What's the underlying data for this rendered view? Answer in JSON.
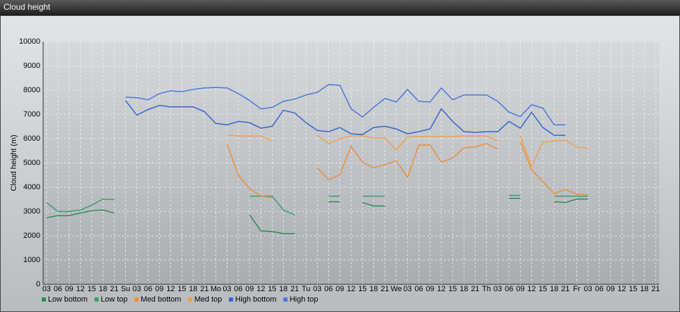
{
  "chart_data": {
    "type": "line",
    "title": "Cloud height",
    "y_label": "Cloud height (m)",
    "categories": [
      "03",
      "06",
      "09",
      "12",
      "15",
      "18",
      "21",
      "Su",
      "03",
      "06",
      "09",
      "12",
      "15",
      "18",
      "21",
      "Mo",
      "03",
      "06",
      "09",
      "12",
      "15",
      "18",
      "21",
      "Tu",
      "03",
      "06",
      "09",
      "12",
      "15",
      "18",
      "21",
      "We",
      "03",
      "06",
      "09",
      "12",
      "15",
      "18",
      "21",
      "Th",
      "03",
      "06",
      "09",
      "12",
      "15",
      "18",
      "21",
      "Fr",
      "03",
      "06",
      "09",
      "12",
      "15",
      "18",
      "21"
    ],
    "series": [
      {
        "name": "Low bottom",
        "color": "#2e8b57",
        "values": [
          2740,
          2830,
          2830,
          2940,
          3030,
          3060,
          2940,
          null,
          null,
          null,
          null,
          null,
          null,
          null,
          null,
          null,
          null,
          null,
          2860,
          2200,
          2170,
          2090,
          2090,
          null,
          null,
          3400,
          3400,
          null,
          3370,
          3230,
          3230,
          null,
          null,
          null,
          null,
          null,
          null,
          null,
          null,
          null,
          null,
          3540,
          3540,
          null,
          null,
          3400,
          3370,
          3510,
          3510,
          null,
          null,
          null,
          null,
          null,
          null
        ]
      },
      {
        "name": "Low top",
        "color": "#3a9d6b",
        "values": [
          3370,
          3000,
          3000,
          3060,
          3260,
          3510,
          3490,
          null,
          null,
          null,
          null,
          null,
          null,
          null,
          null,
          null,
          null,
          null,
          3630,
          3630,
          3630,
          3060,
          2860,
          null,
          null,
          3630,
          3630,
          null,
          3630,
          3630,
          3630,
          null,
          null,
          null,
          null,
          null,
          null,
          null,
          null,
          null,
          null,
          3660,
          3660,
          null,
          null,
          3630,
          3630,
          3630,
          3630,
          null,
          null,
          null,
          null,
          null,
          null
        ]
      },
      {
        "name": "Med bottom",
        "color": "#e8903a",
        "values": [
          null,
          null,
          null,
          null,
          null,
          null,
          null,
          null,
          null,
          null,
          null,
          null,
          null,
          null,
          null,
          null,
          5770,
          4490,
          3940,
          3630,
          3570,
          null,
          null,
          null,
          4800,
          4310,
          4510,
          5690,
          5030,
          4800,
          4940,
          5090,
          4400,
          5740,
          5740,
          5030,
          5200,
          5630,
          5660,
          5800,
          5570,
          null,
          5860,
          4710,
          4230,
          3740,
          3910,
          3710,
          3690,
          null,
          null,
          null,
          null,
          null,
          null
        ]
      },
      {
        "name": "Med top",
        "color": "#f0a04b",
        "values": [
          null,
          null,
          null,
          null,
          null,
          null,
          null,
          null,
          null,
          null,
          null,
          null,
          null,
          null,
          null,
          null,
          6140,
          6110,
          6110,
          6110,
          5910,
          null,
          null,
          null,
          6140,
          5800,
          6000,
          6110,
          6110,
          6030,
          6030,
          5540,
          6060,
          6090,
          6090,
          6090,
          6090,
          6110,
          6110,
          6110,
          5910,
          null,
          6110,
          4860,
          5860,
          5910,
          5940,
          5660,
          5600,
          null,
          null,
          null,
          null,
          null,
          null
        ]
      },
      {
        "name": "High bottom",
        "color": "#3366cc",
        "values": [
          null,
          null,
          null,
          null,
          null,
          null,
          null,
          7570,
          6970,
          7200,
          7370,
          7310,
          7310,
          7310,
          7110,
          6630,
          6570,
          6710,
          6660,
          6430,
          6510,
          7170,
          7060,
          6660,
          6340,
          6290,
          6460,
          6200,
          6170,
          6460,
          6510,
          6400,
          6200,
          6290,
          6400,
          7230,
          6710,
          6290,
          6260,
          6290,
          6290,
          6710,
          6430,
          7090,
          6460,
          6140,
          6140,
          null,
          null,
          null,
          null,
          null,
          null,
          null,
          null
        ]
      },
      {
        "name": "High top",
        "color": "#4a78d8",
        "values": [
          null,
          null,
          null,
          null,
          null,
          null,
          null,
          7710,
          7690,
          7600,
          7860,
          7970,
          7940,
          8030,
          8090,
          8110,
          8090,
          7860,
          7570,
          7230,
          7290,
          7540,
          7630,
          7800,
          7910,
          8230,
          8200,
          7230,
          6890,
          7290,
          7660,
          7510,
          8030,
          7540,
          7510,
          8090,
          7600,
          7800,
          7800,
          7800,
          7540,
          7090,
          6910,
          7400,
          7260,
          6570,
          6570,
          null,
          null,
          null,
          null,
          null,
          null,
          null,
          null
        ]
      }
    ],
    "ylim": [
      0,
      10000
    ],
    "yticks": [
      0,
      1000,
      2000,
      3000,
      4000,
      5000,
      6000,
      7000,
      8000,
      9000,
      10000
    ],
    "grid": true,
    "legend": "bottom-left"
  }
}
